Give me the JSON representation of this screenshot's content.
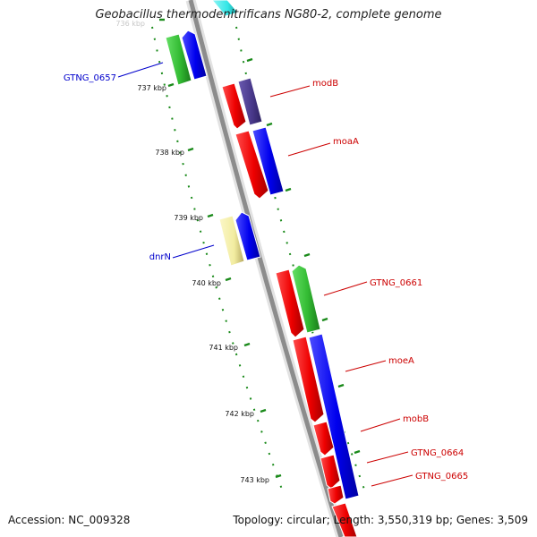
{
  "title": "Geobacillus thermodenitrificans NG80-2, complete genome",
  "footer": {
    "accession": "Accession: NC_009328",
    "topology": "Topology: circular; Length: 3,550,319 bp; Genes: 3,509"
  },
  "ticks": [
    {
      "label": "736 kbp"
    },
    {
      "label": "737 kbp"
    },
    {
      "label": "738 kbp"
    },
    {
      "label": "739 kbp"
    },
    {
      "label": "740 kbp"
    },
    {
      "label": "741 kbp"
    },
    {
      "label": "742 kbp"
    },
    {
      "label": "743 kbp"
    }
  ],
  "gene_labels": [
    {
      "name": "GTNG_0657",
      "color": "#0000cc"
    },
    {
      "name": "modB",
      "color": "#cc0000"
    },
    {
      "name": "moaA",
      "color": "#cc0000"
    },
    {
      "name": "dnrN",
      "color": "#0000cc"
    },
    {
      "name": "GTNG_0661",
      "color": "#cc0000"
    },
    {
      "name": "moeA",
      "color": "#cc0000"
    },
    {
      "name": "mobB",
      "color": "#cc0000"
    },
    {
      "name": "GTNG_0664",
      "color": "#cc0000"
    },
    {
      "name": "GTNG_0665",
      "color": "#cc0000"
    }
  ],
  "colors": {
    "backbone": "#8c8c8c",
    "tick_green": "#1a8a1a",
    "red": "#ee0000",
    "blue": "#0000ee",
    "green": "#33cc33",
    "purple": "#4a3a8c",
    "yellow": "#f2eca0",
    "cyan": "#33e6e6"
  }
}
